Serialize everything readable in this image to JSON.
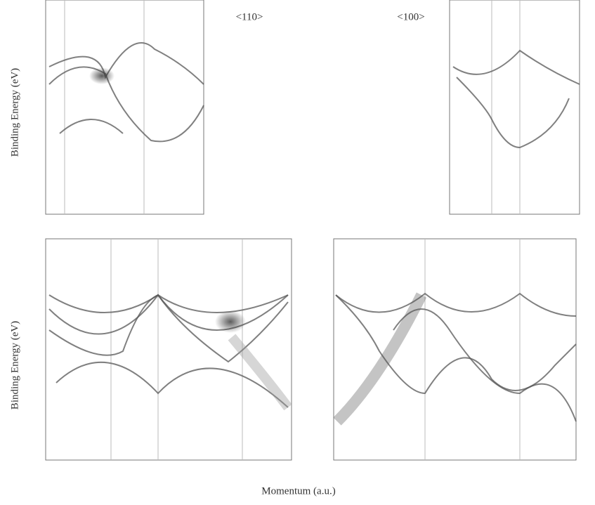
{
  "titles": [
    "<110>",
    "<100>"
  ],
  "axis_labels": {
    "y_top": "Binding Energy (eV)",
    "y_bottom": "Binding Energy (eV)",
    "x": "Momentum (a.u.)"
  }
}
